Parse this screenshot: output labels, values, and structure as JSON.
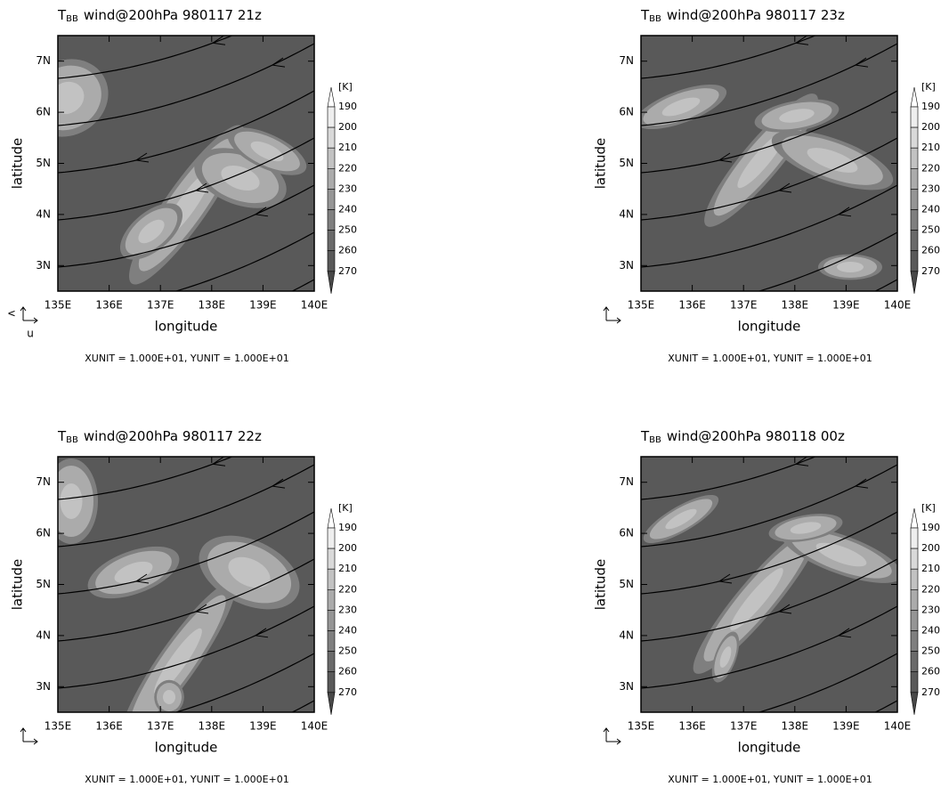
{
  "chart_data": [
    {
      "type": "contour",
      "title_prefix": "T",
      "title_sub": "BB",
      "title": "wind@200hPa 980117 21z",
      "xlabel": "longitude",
      "ylabel": "latitude",
      "note": "XUNIT = 1.000E+01, YUNIT = 1.000E+01",
      "xlim": [
        135,
        140
      ],
      "ylim": [
        2.5,
        7.5
      ],
      "xticks": [
        {
          "value": 135,
          "label": "135E"
        },
        {
          "value": 136,
          "label": "136E"
        },
        {
          "value": 137,
          "label": "137E"
        },
        {
          "value": 138,
          "label": "138E"
        },
        {
          "value": 139,
          "label": "139E"
        },
        {
          "value": 140,
          "label": "140E"
        }
      ],
      "yticks": [
        {
          "value": 3,
          "label": "3N"
        },
        {
          "value": 4,
          "label": "4N"
        },
        {
          "value": 5,
          "label": "5N"
        },
        {
          "value": 6,
          "label": "6N"
        },
        {
          "value": 7,
          "label": "7N"
        }
      ],
      "colorbar_unit": "[K]",
      "levels": [
        190,
        200,
        210,
        220,
        230,
        240,
        250,
        260,
        270
      ],
      "colors": [
        "#ffffff",
        "#eeeeee",
        "#d9d9d9",
        "#c2c2c2",
        "#ababab",
        "#959595",
        "#7f7f7f",
        "#6a6a6a",
        "#595959",
        "#484848"
      ],
      "vector_labels": [
        "v",
        "u"
      ]
    },
    {
      "type": "contour",
      "title_prefix": "T",
      "title_sub": "BB",
      "title": "wind@200hPa 980117 23z",
      "xlabel": "longitude",
      "ylabel": "latitude",
      "note": "XUNIT = 1.000E+01, YUNIT = 1.000E+01",
      "xlim": [
        135,
        140
      ],
      "ylim": [
        2.5,
        7.5
      ],
      "xticks": [
        {
          "value": 135,
          "label": "135E"
        },
        {
          "value": 136,
          "label": "136E"
        },
        {
          "value": 137,
          "label": "137E"
        },
        {
          "value": 138,
          "label": "138E"
        },
        {
          "value": 139,
          "label": "139E"
        },
        {
          "value": 140,
          "label": "140E"
        }
      ],
      "yticks": [
        {
          "value": 3,
          "label": "3N"
        },
        {
          "value": 4,
          "label": "4N"
        },
        {
          "value": 5,
          "label": "5N"
        },
        {
          "value": 6,
          "label": "6N"
        },
        {
          "value": 7,
          "label": "7N"
        }
      ],
      "colorbar_unit": "[K]",
      "levels": [
        190,
        200,
        210,
        220,
        230,
        240,
        250,
        260,
        270
      ],
      "colors": [
        "#ffffff",
        "#eeeeee",
        "#d9d9d9",
        "#c2c2c2",
        "#ababab",
        "#959595",
        "#7f7f7f",
        "#6a6a6a",
        "#595959",
        "#484848"
      ]
    },
    {
      "type": "contour",
      "title_prefix": "T",
      "title_sub": "BB",
      "title": "wind@200hPa 980117 22z",
      "xlabel": "longitude",
      "ylabel": "latitude",
      "note": "XUNIT = 1.000E+01, YUNIT = 1.000E+01",
      "xlim": [
        135,
        140
      ],
      "ylim": [
        2.5,
        7.5
      ],
      "xticks": [
        {
          "value": 135,
          "label": "135E"
        },
        {
          "value": 136,
          "label": "136E"
        },
        {
          "value": 137,
          "label": "137E"
        },
        {
          "value": 138,
          "label": "138E"
        },
        {
          "value": 139,
          "label": "139E"
        },
        {
          "value": 140,
          "label": "140E"
        }
      ],
      "yticks": [
        {
          "value": 3,
          "label": "3N"
        },
        {
          "value": 4,
          "label": "4N"
        },
        {
          "value": 5,
          "label": "5N"
        },
        {
          "value": 6,
          "label": "6N"
        },
        {
          "value": 7,
          "label": "7N"
        }
      ],
      "colorbar_unit": "[K]",
      "levels": [
        190,
        200,
        210,
        220,
        230,
        240,
        250,
        260,
        270
      ],
      "colors": [
        "#ffffff",
        "#eeeeee",
        "#d9d9d9",
        "#c2c2c2",
        "#ababab",
        "#959595",
        "#7f7f7f",
        "#6a6a6a",
        "#595959",
        "#484848"
      ]
    },
    {
      "type": "contour",
      "title_prefix": "T",
      "title_sub": "BB",
      "title": "wind@200hPa 980118 00z",
      "xlabel": "longitude",
      "ylabel": "latitude",
      "note": "XUNIT = 1.000E+01, YUNIT = 1.000E+01",
      "xlim": [
        135,
        140
      ],
      "ylim": [
        2.5,
        7.5
      ],
      "xticks": [
        {
          "value": 135,
          "label": "135E"
        },
        {
          "value": 136,
          "label": "136E"
        },
        {
          "value": 137,
          "label": "137E"
        },
        {
          "value": 138,
          "label": "138E"
        },
        {
          "value": 139,
          "label": "139E"
        },
        {
          "value": 140,
          "label": "140E"
        }
      ],
      "yticks": [
        {
          "value": 3,
          "label": "3N"
        },
        {
          "value": 4,
          "label": "4N"
        },
        {
          "value": 5,
          "label": "5N"
        },
        {
          "value": 6,
          "label": "6N"
        },
        {
          "value": 7,
          "label": "7N"
        }
      ],
      "colorbar_unit": "[K]",
      "levels": [
        190,
        200,
        210,
        220,
        230,
        240,
        250,
        260,
        270
      ],
      "colors": [
        "#ffffff",
        "#eeeeee",
        "#d9d9d9",
        "#c2c2c2",
        "#ababab",
        "#959595",
        "#7f7f7f",
        "#6a6a6a",
        "#595959",
        "#484848"
      ]
    }
  ]
}
